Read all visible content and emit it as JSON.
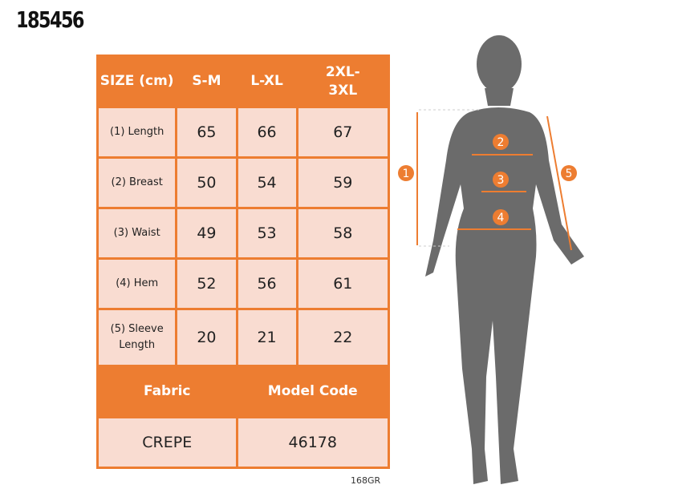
{
  "product_code": "185456",
  "table": {
    "header": [
      "SIZE (cm)",
      "S-M",
      "L-XL",
      "2XL-3XL"
    ],
    "rows": [
      {
        "label": "(1) Length",
        "values": [
          "65",
          "66",
          "67"
        ]
      },
      {
        "label": "(2) Breast",
        "values": [
          "50",
          "54",
          "59"
        ]
      },
      {
        "label": "(3) Waist",
        "values": [
          "49",
          "53",
          "58"
        ]
      },
      {
        "label": "(4) Hem",
        "values": [
          "52",
          "56",
          "61"
        ]
      },
      {
        "label": "(5) Sleeve Length",
        "values": [
          "20",
          "21",
          "22"
        ]
      }
    ],
    "info_header": [
      "Fabric",
      "Model Code"
    ],
    "info_values": [
      "CREPE",
      "46178"
    ]
  },
  "footer_code": "168GR",
  "figure": {
    "markers": [
      "1",
      "2",
      "3",
      "4",
      "5"
    ]
  },
  "colors": {
    "accent": "#ED7D31",
    "cell": "#F9DCD1",
    "silhouette": "#6B6B6B"
  }
}
